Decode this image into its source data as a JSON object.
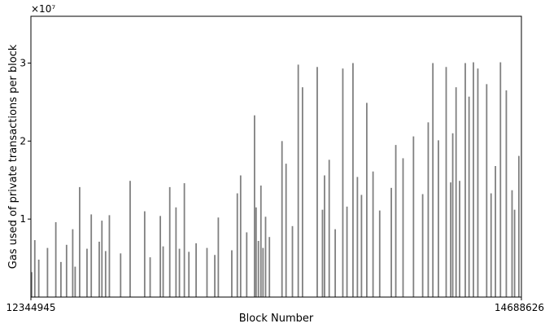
{
  "chart_data": {
    "type": "bar",
    "title": "",
    "xlabel": "Block Number",
    "ylabel": "Gas used of private transactions per block",
    "offset_label": "×10⁷",
    "xlim": [
      12344945,
      14688626
    ],
    "ylim": [
      0,
      36000000
    ],
    "x_ticks": [
      {
        "value": 12344945,
        "label": "12344945"
      },
      {
        "value": 14688626,
        "label": "14688626"
      }
    ],
    "y_ticks": [
      {
        "value": 10000000,
        "label": "1"
      },
      {
        "value": 20000000,
        "label": "2"
      },
      {
        "value": 30000000,
        "label": "3"
      }
    ],
    "grid": false,
    "bar_color": "#808080",
    "series": [
      {
        "x": [
          12344945,
          12363470,
          12382450,
          12424220,
          12464000,
          12488380,
          12515300,
          12544720,
          12556400,
          12577820,
          12612960,
          12633350,
          12671420,
          12684220,
          12701800,
          12719900,
          12773600,
          12819000,
          12888500,
          12914600,
          12963300,
          12976800,
          13008400,
          13038200,
          13054600,
          13078100,
          13099800,
          13134300,
          13186300,
          13223600,
          13240400,
          13304800,
          13331150,
          13347000,
          13376100,
          13413400,
          13420900,
          13432000,
          13444000,
          13454000,
          13466200,
          13484600,
          13544700,
          13564100,
          13594600,
          13622300,
          13642700,
          13713000,
          13738100,
          13747900,
          13770200,
          13799000,
          13835300,
          13855200,
          13883800,
          13905000,
          13924500,
          13949800,
          13979700,
          14011500,
          14067000,
          14088400,
          14123100,
          14173000,
          14216800,
          14243400,
          14265600,
          14292000,
          14329100,
          14350700,
          14360500,
          14376400,
          14393400,
          14420400,
          14438400,
          14459300,
          14480500,
          14522700,
          14543700,
          14564500,
          14588600,
          14616500,
          14643900,
          14656000,
          14676500
        ],
        "values": [
          3200000,
          7300000,
          4800000,
          6300000,
          9600000,
          4500000,
          6700000,
          8700000,
          3900000,
          14100000,
          6200000,
          10600000,
          7100000,
          9800000,
          5900000,
          10500000,
          5600000,
          14900000,
          11000000,
          5100000,
          10400000,
          6500000,
          14100000,
          11500000,
          6200000,
          14600000,
          5800000,
          6900000,
          6300000,
          5400000,
          10200000,
          6000000,
          13300000,
          15600000,
          8300000,
          23300000,
          11500000,
          7200000,
          14300000,
          6300000,
          10300000,
          7700000,
          20000000,
          17100000,
          9100000,
          29800000,
          26900000,
          29500000,
          11200000,
          15600000,
          17600000,
          8700000,
          29300000,
          11600000,
          30000000,
          15400000,
          13100000,
          24900000,
          16100000,
          11100000,
          14000000,
          19500000,
          17800000,
          20600000,
          13200000,
          22400000,
          30000000,
          20100000,
          29500000,
          14700000,
          21000000,
          26900000,
          14900000,
          30000000,
          25700000,
          30100000,
          29300000,
          27300000,
          13300000,
          16800000,
          30100000,
          26500000,
          13700000,
          11200000,
          18100000
        ]
      }
    ]
  }
}
